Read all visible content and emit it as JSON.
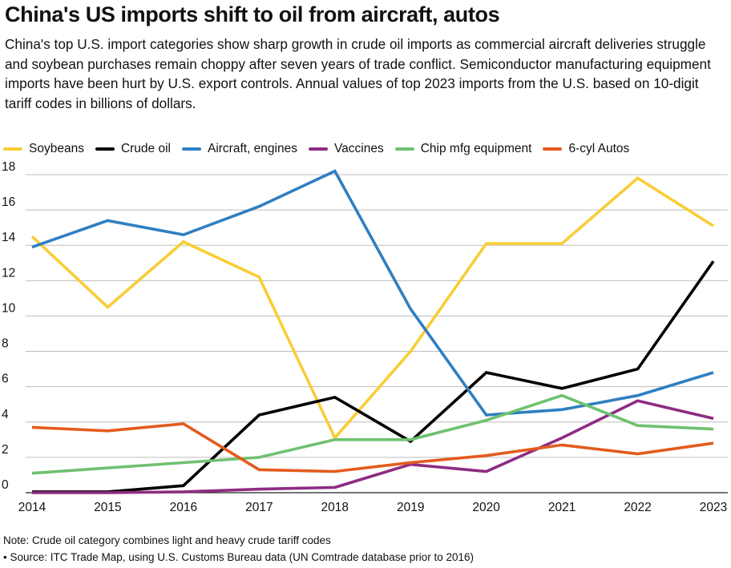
{
  "title": "China's US imports shift to oil from aircraft, autos",
  "subtitle": "China's top U.S. import categories show sharp growth in crude oil imports as commercial aircraft deliveries struggle and soybean purchases remain choppy after seven years of trade conflict. Semiconductor manufacturing equipment imports have been hurt by U.S. export controls. Annual values of top 2023 imports from the U.S. based on 10-digit tariff codes in billions of dollars.",
  "notes": {
    "note": "Note: Crude oil category combines light and heavy crude tariff codes",
    "source": "• Source: ITC Trade Map, using U.S. Customs Bureau data (UN Comtrade database prior to 2016)"
  },
  "chart_data": {
    "type": "line",
    "title": "China's US imports shift to oil from aircraft, autos",
    "xlabel": "",
    "ylabel": "",
    "x": [
      "2014",
      "2015",
      "2016",
      "2017",
      "2018",
      "2019",
      "2020",
      "2021",
      "2022",
      "2023"
    ],
    "ylim": [
      0,
      18
    ],
    "yticks": [
      "0",
      "2",
      "4",
      "6",
      "8",
      "10",
      "12",
      "14",
      "16",
      "18"
    ],
    "grid": "horizontal",
    "legend_position": "top",
    "series": [
      {
        "name": "Soybeans",
        "color": "#f9cd35",
        "values": [
          14.5,
          10.5,
          14.2,
          12.2,
          3.1,
          8.0,
          14.1,
          14.1,
          17.8,
          15.1
        ]
      },
      {
        "name": "Crude oil",
        "color": "#000000",
        "values": [
          0.05,
          0.05,
          0.4,
          4.4,
          5.4,
          2.9,
          6.8,
          5.9,
          7.0,
          13.1
        ]
      },
      {
        "name": "Aircraft, engines",
        "color": "#2f7fc1",
        "values": [
          13.9,
          15.4,
          14.6,
          16.2,
          18.2,
          10.4,
          4.4,
          4.7,
          5.5,
          6.8
        ]
      },
      {
        "name": "Vaccines",
        "color": "#8e2c83",
        "values": [
          0.0,
          0.0,
          0.05,
          0.2,
          0.3,
          1.6,
          1.2,
          3.1,
          5.2,
          4.2
        ]
      },
      {
        "name": "Chip mfg equipment",
        "color": "#70c170",
        "values": [
          1.1,
          1.4,
          1.7,
          2.0,
          3.0,
          3.0,
          4.1,
          5.5,
          3.8,
          3.6
        ]
      },
      {
        "name": "6-cyl Autos",
        "color": "#e35b1e",
        "values": [
          3.7,
          3.5,
          3.9,
          1.3,
          1.2,
          1.7,
          2.1,
          2.7,
          2.2,
          2.8
        ]
      }
    ]
  }
}
